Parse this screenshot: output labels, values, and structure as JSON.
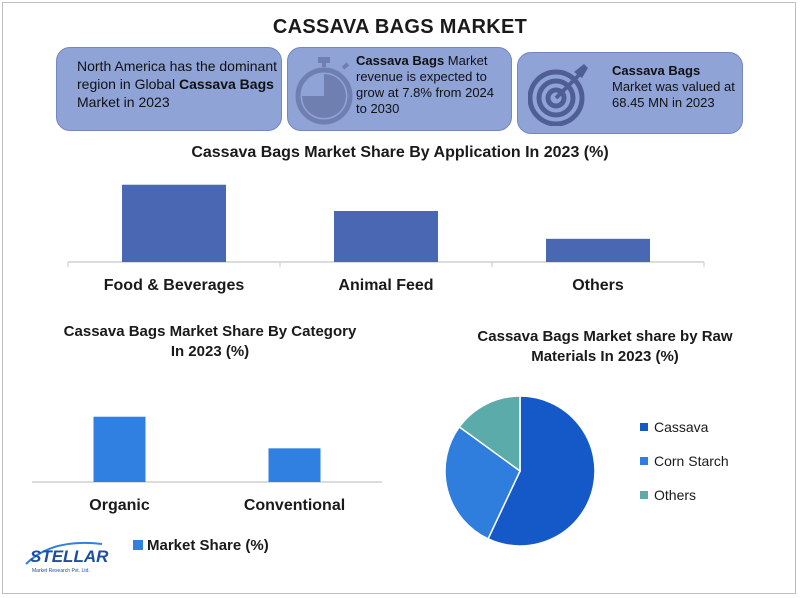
{
  "title": "CASSAVA BAGS MARKET",
  "info_boxes": [
    {
      "pre": "North America has the dominant region in Global ",
      "bold": "Cassava Bags",
      "post": " Market in 2023",
      "icon": "none"
    },
    {
      "pre": "",
      "bold": "Cassava Bags",
      "post": " Market revenue is expected to grow at 7.8% from 2024 to 2030",
      "icon": "stopwatch-icon"
    },
    {
      "pre": "",
      "bold": "Cassava Bags",
      "post": " Market was valued at 68.45 MN in 2023",
      "icon": "target-icon"
    }
  ],
  "logo": {
    "name": "STELLAR",
    "tagline": "Market Research Pvt. Ltd."
  },
  "colors": {
    "box_fill": "#8fa3d7",
    "bar_application": "#4a67b4",
    "bar_category": "#2f80e0",
    "pie_cassava": "#1559c8",
    "pie_corn": "#2f7ddd",
    "pie_others": "#5aaba9"
  },
  "chart_data": [
    {
      "type": "bar",
      "title": "Cassava Bags Market Share By Application In 2023 (%)",
      "categories": [
        "Food & Beverages",
        "Animal Feed",
        "Others"
      ],
      "values": [
        50,
        33,
        15
      ],
      "ylim": [
        0,
        55
      ],
      "grid": false
    },
    {
      "type": "bar",
      "title": "Cassava Bags Market Share By Category In 2023 (%)",
      "categories": [
        "Organic",
        "Conventional"
      ],
      "series": [
        {
          "name": "Market Share (%)",
          "values": [
            64,
            33
          ]
        }
      ],
      "ylim": [
        0,
        100
      ],
      "legend": "bottom",
      "grid": false
    },
    {
      "type": "pie",
      "title": "Cassava Bags Market share by Raw Materials In 2023 (%)",
      "categories": [
        "Cassava",
        "Corn Starch",
        "Others"
      ],
      "values": [
        57,
        28,
        15
      ],
      "legend": "right"
    }
  ]
}
